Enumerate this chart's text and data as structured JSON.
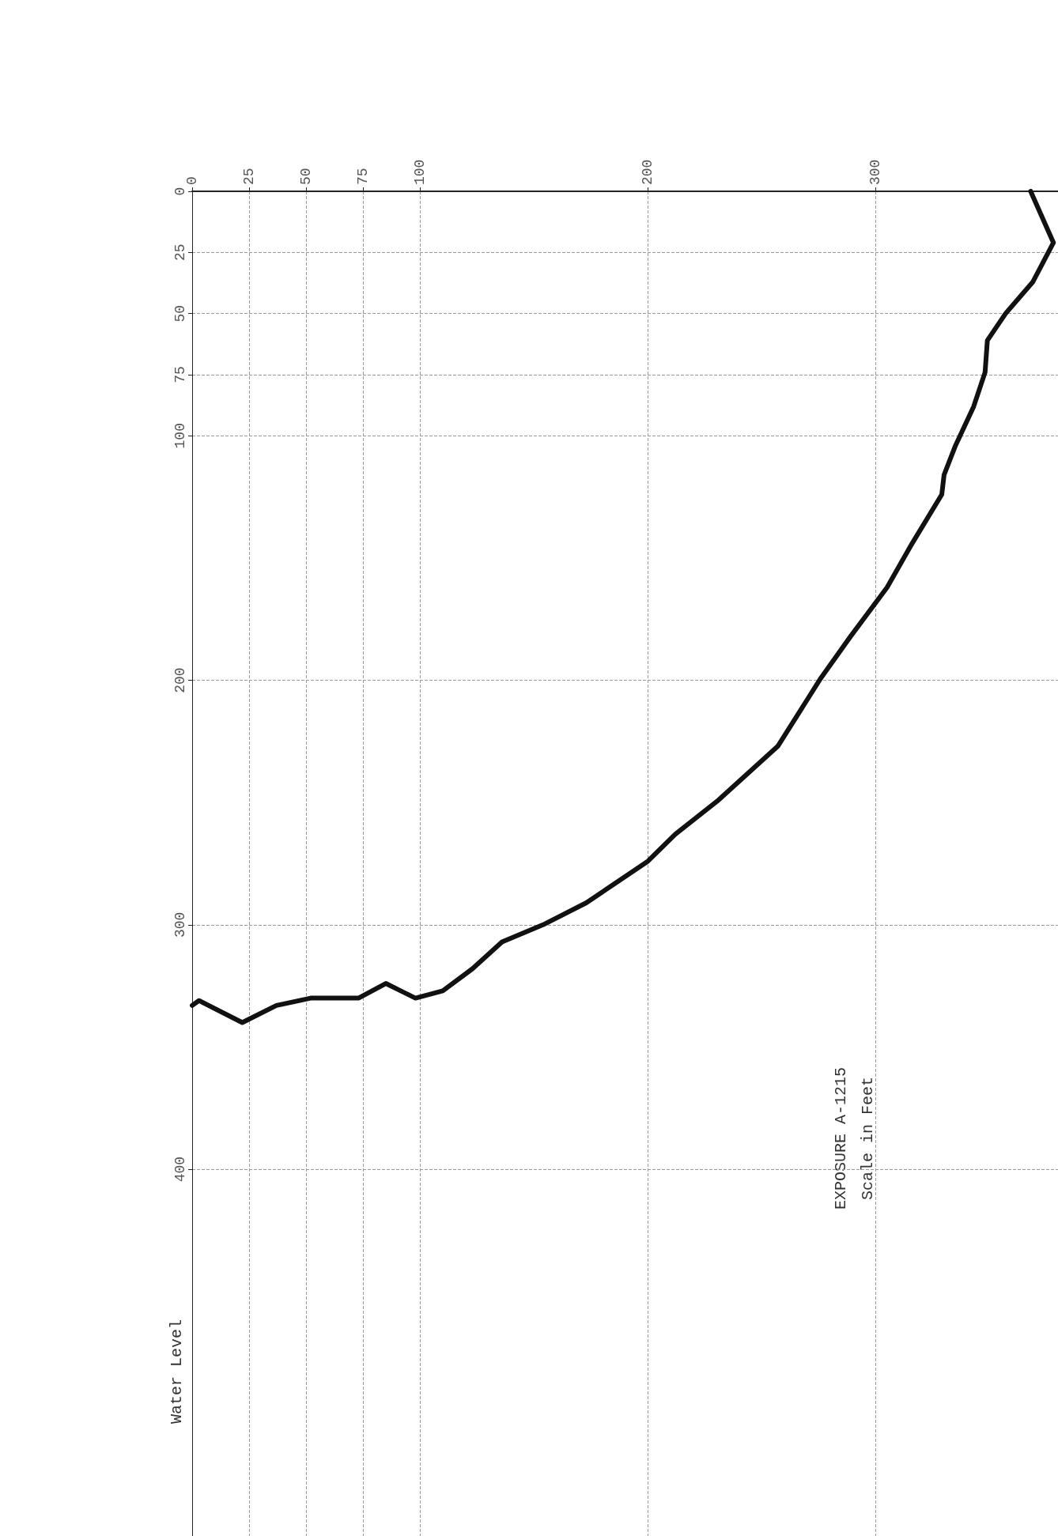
{
  "chart_data": {
    "type": "line",
    "title": "EXPOSURE A-1215",
    "subtitle": "Scale in Feet",
    "annotations": [
      "Water Level"
    ],
    "xlim": [
      0,
      380
    ],
    "xticks": [
      0,
      25,
      50,
      75,
      100,
      200,
      300
    ],
    "ylim": [
      550,
      0
    ],
    "yticks": [
      0,
      25,
      50,
      75,
      100,
      200,
      300,
      400
    ],
    "grid": true,
    "marker": "none",
    "line_style": "solid",
    "series": [
      {
        "color": "#111111",
        "x": [
          368,
          378,
          369,
          357,
          349,
          348,
          343,
          335,
          330,
          329,
          316,
          305,
          289,
          276,
          257,
          231,
          212,
          200,
          173,
          154,
          136,
          123,
          110,
          98,
          85,
          73,
          52,
          37,
          22,
          3,
          0
        ],
        "values": [
          0,
          21,
          37,
          50,
          61,
          74,
          88,
          104,
          116,
          124,
          144,
          162,
          182,
          199,
          227,
          249,
          263,
          274,
          291,
          300,
          307,
          318,
          327,
          330,
          324,
          330,
          330,
          333,
          340,
          331,
          333
        ]
      }
    ]
  }
}
